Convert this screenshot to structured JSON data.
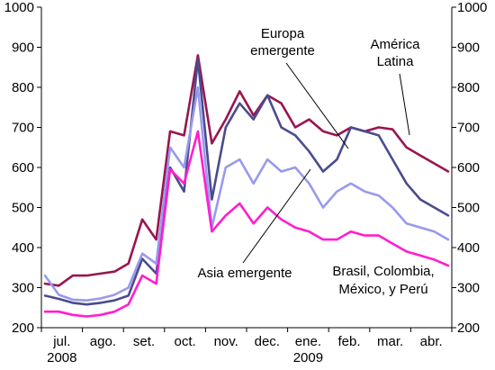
{
  "chart_data": {
    "type": "line",
    "title": "",
    "xlabel": "",
    "ylabel": "",
    "ylim": [
      200,
      1000
    ],
    "yticks": [
      200,
      300,
      400,
      500,
      600,
      700,
      800,
      900,
      1000
    ],
    "right_axis": true,
    "grid": false,
    "legend": "none",
    "xtick_labels": [
      "jul.",
      "ago.",
      "set.",
      "oct.",
      "nov.",
      "dec.",
      "ene.",
      "feb.",
      "mar.",
      "abr."
    ],
    "year_labels": [
      {
        "text": "2008",
        "under": "jul."
      },
      {
        "text": "2009",
        "under": "ene."
      }
    ],
    "x": [
      "jul. 2008 (early)",
      "jul. 2008 (mid)",
      "jul. 2008 (late)",
      "ago. 2008 (early)",
      "ago. 2008 (mid)",
      "ago. 2008 (late)",
      "set. 2008 (early)",
      "set. 2008 (mid)",
      "set. 2008 (late)",
      "oct. 2008 (early)",
      "oct. 2008 (mid)",
      "oct. 2008 (late)",
      "nov. 2008 (early)",
      "nov. 2008 (mid)",
      "nov. 2008 (late)",
      "dec. 2008 (early)",
      "dec. 2008 (mid)",
      "dec. 2008 (late)",
      "ene. 2009 (early)",
      "ene. 2009 (mid)",
      "ene. 2009 (late)",
      "feb. 2009 (early)",
      "feb. 2009 (mid)",
      "feb. 2009 (late)",
      "mar. 2009 (early)",
      "mar. 2009 (mid)",
      "mar. 2009 (late)",
      "abr. 2009 (early)",
      "abr. 2009 (mid)",
      "abr. 2009 (late)"
    ],
    "series": [
      {
        "color": "#99154f",
        "values": [
          310,
          305,
          330,
          330,
          335,
          340,
          360,
          470,
          420,
          690,
          680,
          880,
          660,
          720,
          790,
          730,
          780,
          760,
          700,
          720,
          690,
          680,
          700,
          690,
          700,
          695,
          650,
          630,
          610,
          590
        ]
      },
      {
        "color": "#4b4b8f",
        "values": [
          280,
          272,
          262,
          258,
          262,
          268,
          280,
          372,
          335,
          600,
          540,
          870,
          520,
          700,
          760,
          720,
          780,
          700,
          680,
          640,
          590,
          620,
          700,
          690,
          680,
          620,
          560,
          520,
          500,
          480
        ]
      },
      {
        "color": "#9999ee",
        "values": [
          330,
          282,
          270,
          268,
          273,
          282,
          300,
          385,
          360,
          650,
          600,
          800,
          450,
          600,
          620,
          560,
          620,
          590,
          600,
          560,
          500,
          540,
          560,
          540,
          530,
          500,
          460,
          450,
          440,
          420
        ]
      },
      {
        "color": "#ff1ecf",
        "values": [
          240,
          240,
          232,
          228,
          232,
          240,
          258,
          330,
          310,
          595,
          560,
          690,
          440,
          480,
          510,
          460,
          500,
          470,
          450,
          440,
          420,
          420,
          440,
          430,
          430,
          410,
          390,
          380,
          370,
          355
        ]
      }
    ],
    "annotations": [
      {
        "text_lines": [
          "Europa",
          "emergente"
        ]
      },
      {
        "text_lines": [
          "América",
          "Latina"
        ]
      },
      {
        "text_lines": [
          "Asia emergente"
        ]
      },
      {
        "text_lines": [
          "Brasil, Colombia,",
          "México, y Perú"
        ]
      }
    ]
  }
}
